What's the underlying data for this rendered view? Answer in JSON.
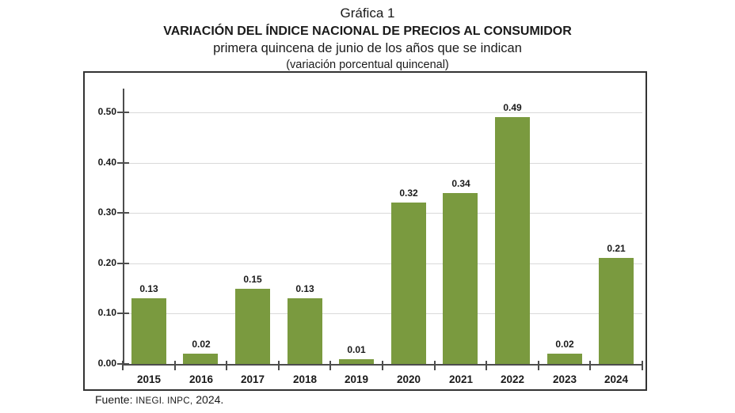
{
  "header": {
    "line1": "Gráfica 1",
    "line2": "VARIACIÓN DEL ÍNDICE NACIONAL DE PRECIOS AL CONSUMIDOR",
    "line3": "primera quincena de junio de los años que se indican",
    "line4": "(variación porcentual quincenal)"
  },
  "chart_data": {
    "type": "bar",
    "title": "Gráfica 1",
    "subtitle": "VARIACIÓN DEL ÍNDICE NACIONAL DE PRECIOS AL CONSUMIDOR",
    "subtitle2": "primera quincena de junio de los años que se indican",
    "units_note": "(variación porcentual quincenal)",
    "categories": [
      "2015",
      "2016",
      "2017",
      "2018",
      "2019",
      "2020",
      "2021",
      "2022",
      "2023",
      "2024"
    ],
    "values": [
      0.13,
      0.02,
      0.15,
      0.13,
      0.01,
      0.32,
      0.34,
      0.49,
      0.02,
      0.21
    ],
    "bar_labels": [
      "0.13",
      "0.02",
      "0.15",
      "0.13",
      "0.01",
      "0.32",
      "0.34",
      "0.49",
      "0.02",
      "0.21"
    ],
    "y_ticks": [
      "0.00",
      "0.10",
      "0.20",
      "0.30",
      "0.40",
      "0.50"
    ],
    "y_tick_values": [
      0.0,
      0.1,
      0.2,
      0.3,
      0.4,
      0.5
    ],
    "ylim": [
      0,
      0.55
    ],
    "xlabel": "",
    "ylabel": "",
    "grid": true,
    "legend": "none",
    "bar_color": "#7A9A3F",
    "gridline_color": "#d9d9d9",
    "axis_color": "#4d4d4d"
  },
  "footer": {
    "source_prefix": "Fuente: ",
    "source_small": "INEGI. INPC,",
    "source_suffix": " 2024."
  }
}
